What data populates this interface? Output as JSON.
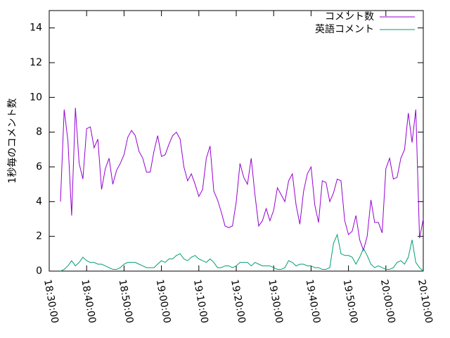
{
  "chart_data": {
    "type": "line",
    "ylabel": "1秒毎のコメント数",
    "ylim": [
      0,
      15
    ],
    "yticks": [
      0,
      2,
      4,
      6,
      8,
      10,
      12,
      14
    ],
    "xlim": [
      "18:30:00",
      "20:10:00"
    ],
    "xticks": [
      "18:30:00",
      "18:40:00",
      "18:50:00",
      "19:00:00",
      "19:10:00",
      "19:20:00",
      "19:30:00",
      "19:40:00",
      "19:50:00",
      "20:00:00",
      "20:10:00"
    ],
    "legend": "top-right",
    "x": [
      "18:33:00",
      "18:34:00",
      "18:35:00",
      "18:36:00",
      "18:37:00",
      "18:38:00",
      "18:39:00",
      "18:40:00",
      "18:41:00",
      "18:42:00",
      "18:43:00",
      "18:44:00",
      "18:45:00",
      "18:46:00",
      "18:47:00",
      "18:48:00",
      "18:49:00",
      "18:50:00",
      "18:51:00",
      "18:52:00",
      "18:53:00",
      "18:54:00",
      "18:55:00",
      "18:56:00",
      "18:57:00",
      "18:58:00",
      "18:59:00",
      "19:00:00",
      "19:01:00",
      "19:02:00",
      "19:03:00",
      "19:04:00",
      "19:05:00",
      "19:06:00",
      "19:07:00",
      "19:08:00",
      "19:09:00",
      "19:10:00",
      "19:11:00",
      "19:12:00",
      "19:13:00",
      "19:14:00",
      "19:15:00",
      "19:16:00",
      "19:17:00",
      "19:18:00",
      "19:19:00",
      "19:20:00",
      "19:21:00",
      "19:22:00",
      "19:23:00",
      "19:24:00",
      "19:25:00",
      "19:26:00",
      "19:27:00",
      "19:28:00",
      "19:29:00",
      "19:30:00",
      "19:31:00",
      "19:32:00",
      "19:33:00",
      "19:34:00",
      "19:35:00",
      "19:36:00",
      "19:37:00",
      "19:38:00",
      "19:39:00",
      "19:40:00",
      "19:41:00",
      "19:42:00",
      "19:43:00",
      "19:44:00",
      "19:45:00",
      "19:46:00",
      "19:47:00",
      "19:48:00",
      "19:49:00",
      "19:50:00",
      "19:51:00",
      "19:52:00",
      "19:53:00",
      "19:54:00",
      "19:55:00",
      "19:56:00",
      "19:57:00",
      "19:58:00",
      "19:59:00",
      "20:00:00",
      "20:01:00",
      "20:02:00",
      "20:03:00",
      "20:04:00",
      "20:05:00",
      "20:06:00",
      "20:07:00",
      "20:08:00",
      "20:09:00",
      "20:10:00"
    ],
    "series": [
      {
        "name": "コメント数",
        "color": "#9400d3",
        "values": [
          4.0,
          9.3,
          7.5,
          3.2,
          9.4,
          6.2,
          5.3,
          8.2,
          8.3,
          7.1,
          7.6,
          4.7,
          5.9,
          6.5,
          5.0,
          5.8,
          6.2,
          6.7,
          7.7,
          8.1,
          7.8,
          6.9,
          6.5,
          5.7,
          5.7,
          6.9,
          7.8,
          6.6,
          6.7,
          7.3,
          7.8,
          8.0,
          7.6,
          6.0,
          5.2,
          5.6,
          5.0,
          4.3,
          4.7,
          6.5,
          7.2,
          4.6,
          4.1,
          3.4,
          2.6,
          2.5,
          2.6,
          4.0,
          6.2,
          5.4,
          5.0,
          6.5,
          4.4,
          2.6,
          2.9,
          3.6,
          2.9,
          3.5,
          4.8,
          4.4,
          4.0,
          5.2,
          5.6,
          3.8,
          2.7,
          4.6,
          5.6,
          6.0,
          3.8,
          2.8,
          5.2,
          5.1,
          4.0,
          4.5,
          5.3,
          5.2,
          2.9,
          2.1,
          2.3,
          3.2,
          1.8,
          1.2,
          2.0,
          4.1,
          2.8,
          2.8,
          2.2,
          5.9,
          6.5,
          5.3,
          5.4,
          6.5,
          7.0,
          9.1,
          7.4,
          9.3,
          1.9,
          3.0
        ]
      },
      {
        "name": "英語コメント",
        "color": "#009e73",
        "values": [
          0.0,
          0.1,
          0.3,
          0.6,
          0.3,
          0.5,
          0.8,
          0.6,
          0.5,
          0.5,
          0.4,
          0.4,
          0.3,
          0.2,
          0.1,
          0.1,
          0.2,
          0.4,
          0.5,
          0.5,
          0.5,
          0.4,
          0.3,
          0.2,
          0.2,
          0.2,
          0.4,
          0.6,
          0.5,
          0.7,
          0.7,
          0.9,
          1.0,
          0.7,
          0.6,
          0.8,
          0.9,
          0.7,
          0.6,
          0.5,
          0.7,
          0.5,
          0.2,
          0.2,
          0.3,
          0.3,
          0.2,
          0.3,
          0.5,
          0.5,
          0.5,
          0.3,
          0.5,
          0.4,
          0.3,
          0.3,
          0.3,
          0.2,
          0.1,
          0.1,
          0.2,
          0.6,
          0.5,
          0.3,
          0.4,
          0.4,
          0.3,
          0.3,
          0.2,
          0.2,
          0.1,
          0.1,
          0.2,
          1.6,
          2.1,
          1.0,
          0.9,
          0.9,
          0.8,
          0.4,
          0.8,
          1.3,
          0.9,
          0.4,
          0.2,
          0.3,
          0.2,
          0.1,
          0.1,
          0.2,
          0.5,
          0.6,
          0.4,
          0.8,
          1.8,
          0.5,
          0.2,
          0.0
        ]
      }
    ]
  }
}
